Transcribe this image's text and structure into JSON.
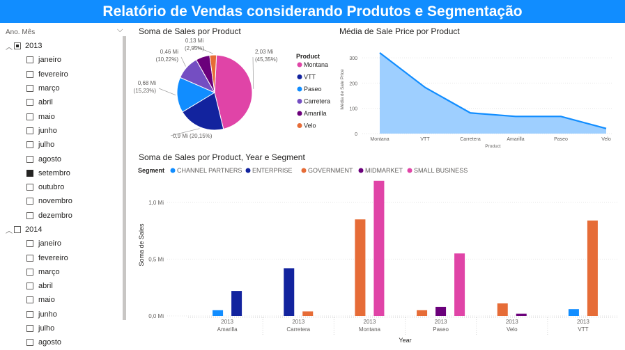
{
  "page_title": "Relatório de Vendas considerando Produtos e Segmentação",
  "slicer": {
    "header": "Ano. Mês",
    "years": [
      {
        "label": "2013",
        "expanded": true,
        "state": "partial",
        "months": [
          {
            "label": "janeiro",
            "checked": false
          },
          {
            "label": "fevereiro",
            "checked": false
          },
          {
            "label": "março",
            "checked": false
          },
          {
            "label": "abril",
            "checked": false
          },
          {
            "label": "maio",
            "checked": false
          },
          {
            "label": "junho",
            "checked": false
          },
          {
            "label": "julho",
            "checked": false
          },
          {
            "label": "agosto",
            "checked": false
          },
          {
            "label": "setembro",
            "checked": true
          },
          {
            "label": "outubro",
            "checked": false
          },
          {
            "label": "novembro",
            "checked": false
          },
          {
            "label": "dezembro",
            "checked": false
          }
        ]
      },
      {
        "label": "2014",
        "expanded": true,
        "state": "empty",
        "months": [
          {
            "label": "janeiro",
            "checked": false
          },
          {
            "label": "fevereiro",
            "checked": false
          },
          {
            "label": "março",
            "checked": false
          },
          {
            "label": "abril",
            "checked": false
          },
          {
            "label": "maio",
            "checked": false
          },
          {
            "label": "junho",
            "checked": false
          },
          {
            "label": "julho",
            "checked": false
          },
          {
            "label": "agosto",
            "checked": false
          }
        ]
      }
    ]
  },
  "chart_data": [
    {
      "type": "pie",
      "title": "Soma de Sales por Product",
      "legend_title": "Product",
      "legend_position": "right",
      "slices": [
        {
          "label": "Montana",
          "value": 2.03,
          "value_label": "2,03 Mi",
          "pct_label": "(45,35%)",
          "color": "#E044A7"
        },
        {
          "label": "VTT",
          "value": 0.9,
          "value_label": "0,9 Mi (20,15%)",
          "pct_label": "",
          "color": "#12239E"
        },
        {
          "label": "Paseo",
          "value": 0.68,
          "value_label": "0,68 Mi",
          "pct_label": "(15,23%)",
          "color": "#118DFF"
        },
        {
          "label": "Carretera",
          "value": 0.46,
          "value_label": "0,46 Mi",
          "pct_label": "(10,22%)",
          "color": "#744EC2"
        },
        {
          "label": "Amarilla",
          "value": 0.27,
          "value_label": "",
          "pct_label": "",
          "color": "#6B007B"
        },
        {
          "label": "Velo",
          "value": 0.13,
          "value_label": "0,13 Mi",
          "pct_label": "(2,95%)",
          "color": "#E66C37"
        }
      ]
    },
    {
      "type": "area",
      "title": "Média de Sale Price por Product",
      "xlabel": "Product",
      "ylabel": "Média de Sale Price",
      "categories": [
        "Montana",
        "VTT",
        "Carretera",
        "Amarilla",
        "Paseo",
        "Velo"
      ],
      "values": [
        320,
        183,
        82,
        68,
        68,
        20
      ],
      "ylim": [
        0,
        350
      ],
      "yticks": [
        0,
        100,
        200,
        300
      ],
      "color": "#118DFF",
      "fill": "#9ECFFF"
    },
    {
      "type": "bar",
      "title": "Soma de Sales por Product, Year e Segment",
      "legend_title": "Segment",
      "legend_position": "top-left",
      "xlabel": "Year",
      "ylabel": "Soma de Sales",
      "ylim": [
        0,
        1.25
      ],
      "yticks": [
        {
          "v": 0,
          "label": "0,0 Mi"
        },
        {
          "v": 0.5,
          "label": "0,5 Mi"
        },
        {
          "v": 1.0,
          "label": "1,0 Mi"
        }
      ],
      "series": [
        {
          "name": "CHANNEL PARTNERS",
          "color": "#118DFF"
        },
        {
          "name": "ENTERPRISE",
          "color": "#12239E"
        },
        {
          "name": "GOVERNMENT",
          "color": "#E66C37"
        },
        {
          "name": "MIDMARKET",
          "color": "#6B007B"
        },
        {
          "name": "SMALL BUSINESS",
          "color": "#E044A7"
        }
      ],
      "groups": [
        {
          "product": "Amarilla",
          "year": "2013",
          "values": [
            0.05,
            0.22,
            0,
            0,
            0
          ]
        },
        {
          "product": "Carretera",
          "year": "2013",
          "values": [
            0,
            0.42,
            0.04,
            0,
            0
          ]
        },
        {
          "product": "Montana",
          "year": "2013",
          "values": [
            0,
            0,
            0.85,
            0,
            1.19
          ]
        },
        {
          "product": "Paseo",
          "year": "2013",
          "values": [
            0,
            0,
            0.05,
            0.08,
            0.55
          ]
        },
        {
          "product": "Velo",
          "year": "2013",
          "values": [
            0,
            0,
            0.11,
            0.02,
            0
          ]
        },
        {
          "product": "VTT",
          "year": "2013",
          "values": [
            0.06,
            0,
            0.84,
            0,
            0
          ]
        }
      ]
    }
  ]
}
